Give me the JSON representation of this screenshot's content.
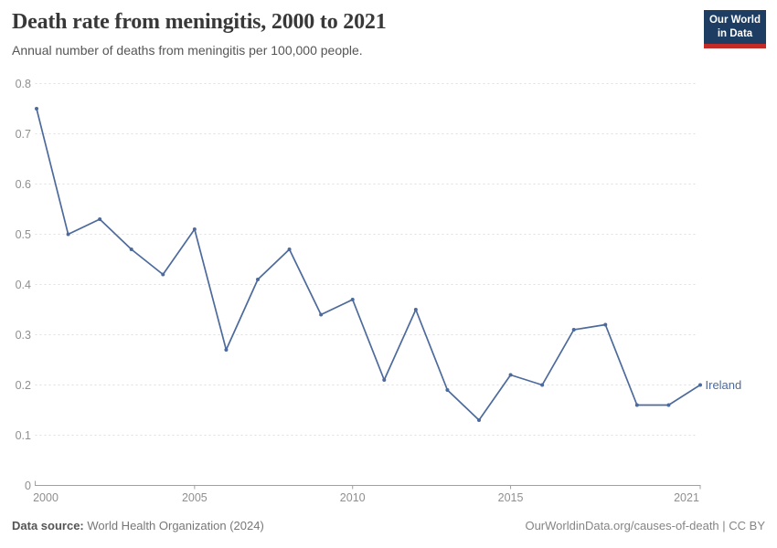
{
  "header": {
    "title": "Death rate from meningitis, 2000 to 2021",
    "subtitle": "Annual number of deaths from meningitis per 100,000 people."
  },
  "logo": {
    "line1": "Our World",
    "line2": "in Data",
    "bg_color": "#1d3d63",
    "bar_color": "#c22b26"
  },
  "footer": {
    "source_label": "Data source:",
    "source_text": " World Health Organization (2024)",
    "right_text": "OurWorldinData.org/causes-of-death | CC BY"
  },
  "chart_data": {
    "type": "line",
    "title": "Death rate from meningitis, 2000 to 2021",
    "subtitle": "Annual number of deaths from meningitis per 100,000 people.",
    "xlabel": "",
    "ylabel": "",
    "xlim": [
      2000,
      2021
    ],
    "ylim": [
      0,
      0.8
    ],
    "grid": "horizontal-dashed",
    "legend_position": "end-of-line-label",
    "x": [
      2000,
      2001,
      2002,
      2003,
      2004,
      2005,
      2006,
      2007,
      2008,
      2009,
      2010,
      2011,
      2012,
      2013,
      2014,
      2015,
      2016,
      2017,
      2018,
      2019,
      2020,
      2021
    ],
    "series": [
      {
        "name": "Ireland",
        "color": "#4C6A9C",
        "values": [
          0.75,
          0.5,
          0.53,
          0.47,
          0.42,
          0.51,
          0.27,
          0.41,
          0.47,
          0.34,
          0.37,
          0.21,
          0.35,
          0.19,
          0.13,
          0.22,
          0.2,
          0.31,
          0.32,
          0.16,
          0.16,
          0.2
        ]
      }
    ],
    "x_ticks": [
      2000,
      2005,
      2010,
      2015,
      2021
    ],
    "y_ticks": [
      "0",
      "0.1",
      "0.2",
      "0.3",
      "0.4",
      "0.5",
      "0.6",
      "0.7",
      "0.8"
    ],
    "axis_color": "#a0a0a0",
    "grid_color": "#e0e0e0",
    "tick_label_color": "#8f8f8f"
  }
}
